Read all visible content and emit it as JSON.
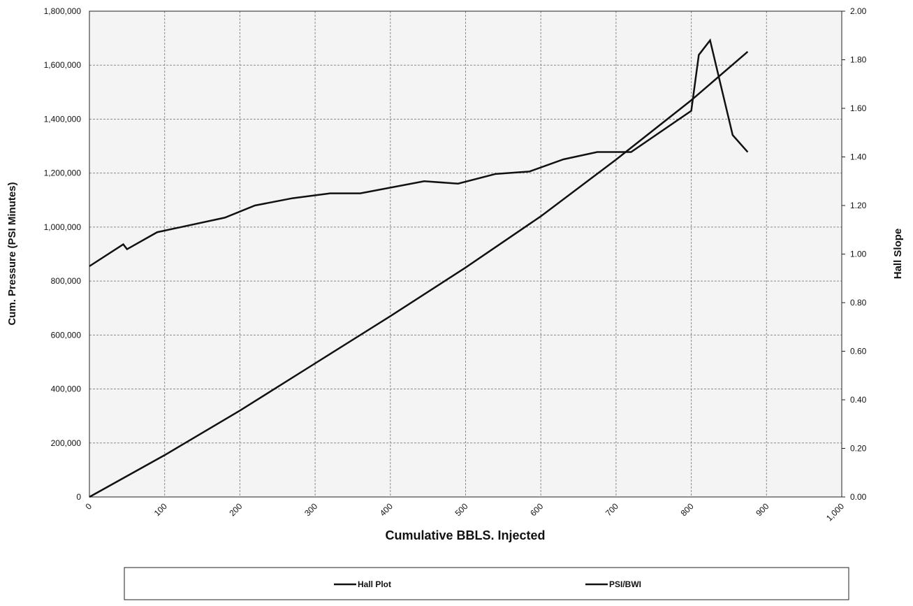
{
  "chart_data": {
    "type": "line",
    "xlabel": "Cumulative BBLS. Injected",
    "ylabel": "Cum. Pressure (PSI Minutes)",
    "y2label": "Hall Slope",
    "xlim": [
      0,
      1000
    ],
    "xticks": [
      0,
      100,
      200,
      300,
      400,
      500,
      600,
      700,
      800,
      900,
      {
        "value": 1000,
        "label": "1,000"
      }
    ],
    "ylim": [
      0,
      1800000
    ],
    "yticks": [
      0,
      {
        "value": 200000,
        "label": "200,000"
      },
      {
        "value": 400000,
        "label": "400,000"
      },
      {
        "value": 600000,
        "label": "600,000"
      },
      {
        "value": 800000,
        "label": "800,000"
      },
      {
        "value": 1000000,
        "label": "1,000,000"
      },
      {
        "value": 1200000,
        "label": "1,200,000"
      },
      {
        "value": 1400000,
        "label": "1,400,000"
      },
      {
        "value": 1600000,
        "label": "1,600,000"
      },
      {
        "value": 1800000,
        "label": "1,800,000"
      }
    ],
    "y2lim": [
      0,
      2
    ],
    "y2ticks": [
      {
        "value": 0,
        "label": "0.00"
      },
      {
        "value": 0.2,
        "label": "0.20"
      },
      {
        "value": 0.4,
        "label": "0.40"
      },
      {
        "value": 0.6,
        "label": "0.60"
      },
      {
        "value": 0.8,
        "label": "0.80"
      },
      {
        "value": 1,
        "label": "1.00"
      },
      {
        "value": 1.2,
        "label": "1.20"
      },
      {
        "value": 1.4,
        "label": "1.40"
      },
      {
        "value": 1.6,
        "label": "1.60"
      },
      {
        "value": 1.8,
        "label": "1.80"
      },
      {
        "value": 2,
        "label": "2.00"
      }
    ],
    "grid": true,
    "legend": "bottom",
    "series": [
      {
        "name": "Hall Plot",
        "color": "#111111",
        "x": [
          0,
          100,
          200,
          300,
          400,
          500,
          600,
          700,
          800,
          875
        ],
        "values": [
          0,
          155000,
          320000,
          495000,
          670000,
          850000,
          1040000,
          1250000,
          1470000,
          1650000
        ]
      },
      {
        "name": "PSI/BWI",
        "color": "#111111",
        "axis": "y2",
        "x": [
          0,
          45,
          50,
          90,
          180,
          220,
          270,
          320,
          360,
          445,
          490,
          540,
          585,
          630,
          675,
          720,
          800,
          810,
          825,
          855,
          875
        ],
        "values": [
          0.95,
          1.04,
          1.02,
          1.09,
          1.15,
          1.2,
          1.23,
          1.25,
          1.25,
          1.3,
          1.29,
          1.33,
          1.34,
          1.39,
          1.42,
          1.42,
          1.59,
          1.82,
          1.88,
          1.49,
          1.42
        ]
      }
    ]
  }
}
